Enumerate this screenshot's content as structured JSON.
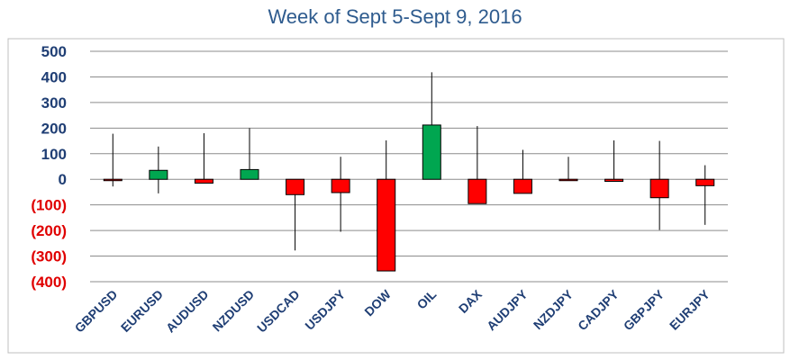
{
  "chart_data": {
    "type": "candlestick",
    "title": "Week of Sept 5-Sept 9, 2016",
    "xlabel": "",
    "ylabel": "",
    "ylim": [
      -400,
      500
    ],
    "grid": true,
    "legend": "none",
    "y_ticks": [
      {
        "value": 500,
        "label": "500"
      },
      {
        "value": 400,
        "label": "400"
      },
      {
        "value": 300,
        "label": "300"
      },
      {
        "value": 200,
        "label": "200"
      },
      {
        "value": 100,
        "label": "100"
      },
      {
        "value": 0,
        "label": "0"
      },
      {
        "value": -100,
        "label": "(100)"
      },
      {
        "value": -200,
        "label": "(200)"
      },
      {
        "value": -300,
        "label": "(300)"
      },
      {
        "value": -400,
        "label": "(400)"
      }
    ],
    "colors": {
      "up": "#00a650",
      "down": "#ff0000",
      "positive_label": "#1f3e74",
      "negative_label": "#e00000",
      "title": "#2e5b8e",
      "grid": "#8c8c8c"
    },
    "categories": [
      "GBPUSD",
      "EURUSD",
      "AUDUSD",
      "NZDUSD",
      "USDCAD",
      "USDJPY",
      "DOW",
      "OIL",
      "DAX",
      "AUDJPY",
      "NZDJPY",
      "CADJPY",
      "GBPJPY",
      "EURJPY"
    ],
    "candles": [
      {
        "open": 0,
        "close": -3,
        "high": 178,
        "low": -28
      },
      {
        "open": 0,
        "close": 35,
        "high": 128,
        "low": -55
      },
      {
        "open": 0,
        "close": -15,
        "high": 180,
        "low": -15
      },
      {
        "open": 0,
        "close": 38,
        "high": 200,
        "low": 0
      },
      {
        "open": 0,
        "close": -60,
        "high": 0,
        "low": -278
      },
      {
        "open": 0,
        "close": -52,
        "high": 88,
        "low": -205
      },
      {
        "open": 0,
        "close": -358,
        "high": 152,
        "low": -358
      },
      {
        "open": 0,
        "close": 212,
        "high": 418,
        "low": 0
      },
      {
        "open": 0,
        "close": -95,
        "high": 208,
        "low": -95
      },
      {
        "open": 0,
        "close": -55,
        "high": 115,
        "low": -55
      },
      {
        "open": 0,
        "close": -3,
        "high": 88,
        "low": -3
      },
      {
        "open": 0,
        "close": -8,
        "high": 152,
        "low": -8
      },
      {
        "open": 0,
        "close": -72,
        "high": 150,
        "low": -198
      },
      {
        "open": 0,
        "close": -25,
        "high": 55,
        "low": -178
      }
    ]
  }
}
